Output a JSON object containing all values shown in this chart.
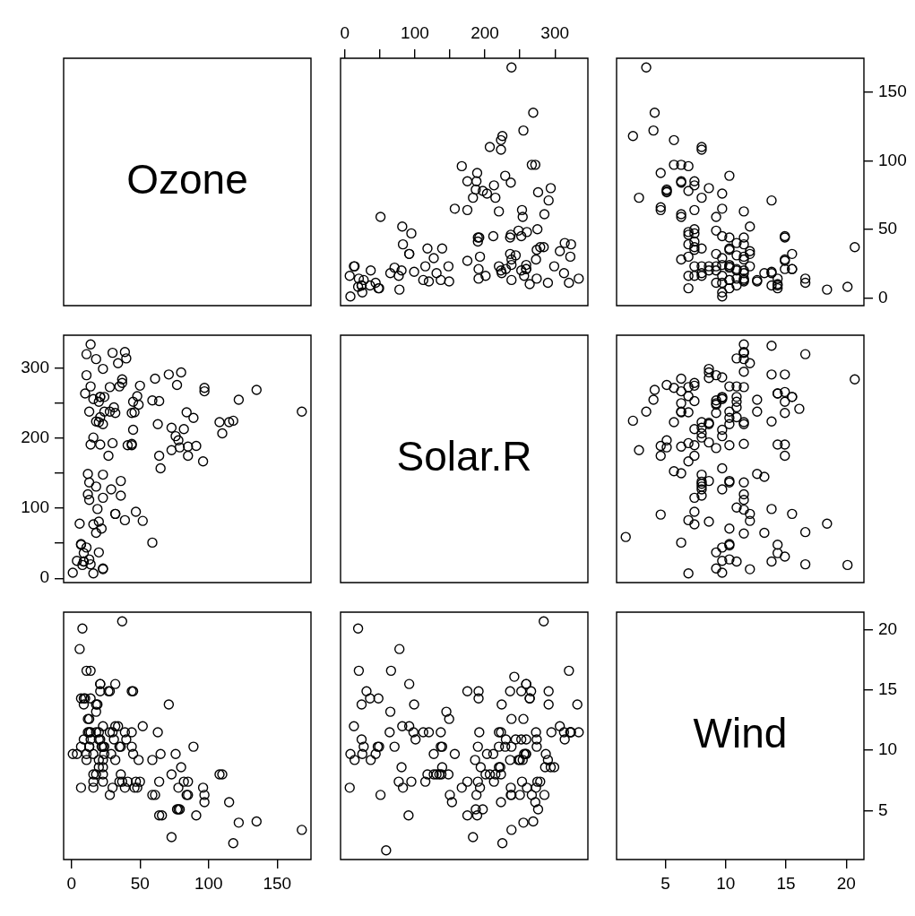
{
  "chart_data": [
    {
      "type": "other",
      "title": "Ozone"
    },
    {
      "type": "scatter",
      "marker": "circle",
      "color": "#000000",
      "tick_labels": "x",
      "xlim": [
        -6.08,
        347.08
      ],
      "xticks": [
        0,
        {
          "value": 50,
          "label": null
        },
        100,
        {
          "value": 150,
          "label": null
        },
        200,
        {
          "value": 250,
          "label": null
        },
        300
      ],
      "ylim": [
        -5.68,
        174.68
      ],
      "yticks": [
        0,
        50,
        100,
        150
      ],
      "x": [
        190,
        118,
        149,
        313,
        299,
        99,
        19,
        256,
        290,
        274,
        65,
        334,
        307,
        78,
        322,
        44,
        8,
        320,
        25,
        92,
        13,
        252,
        223,
        279,
        127,
        291,
        323,
        148,
        191,
        284,
        37,
        120,
        137,
        269,
        248,
        236,
        175,
        314,
        276,
        267,
        272,
        175,
        264,
        175,
        48,
        260,
        274,
        285,
        187,
        220,
        7,
        294,
        223,
        81,
        82,
        213,
        275,
        253,
        254,
        83,
        24,
        77,
        255,
        229,
        207,
        192,
        273,
        157,
        71,
        51,
        115,
        244,
        190,
        259,
        36,
        212,
        238,
        215,
        203,
        225,
        237,
        188,
        167,
        197,
        183,
        189,
        95,
        92,
        252,
        220,
        230,
        259,
        236,
        259,
        238,
        24,
        112,
        237,
        224,
        27,
        238,
        201,
        238,
        14,
        139,
        49,
        20,
        193,
        191,
        131,
        223
      ],
      "values": [
        41,
        36,
        12,
        18,
        23,
        19,
        8,
        16,
        11,
        14,
        18,
        14,
        34,
        6,
        30,
        11,
        1,
        11,
        4,
        32,
        23,
        45,
        115,
        37,
        29,
        71,
        39,
        23,
        21,
        37,
        20,
        12,
        13,
        135,
        49,
        32,
        64,
        40,
        77,
        97,
        97,
        85,
        10,
        27,
        7,
        48,
        35,
        61,
        79,
        63,
        16,
        80,
        108,
        20,
        52,
        82,
        50,
        64,
        59,
        39,
        9,
        16,
        122,
        89,
        110,
        44,
        28,
        65,
        22,
        59,
        23,
        31,
        44,
        21,
        9,
        45,
        168,
        73,
        76,
        118,
        84,
        85,
        96,
        78,
        73,
        91,
        47,
        32,
        20,
        23,
        21,
        24,
        44,
        21,
        28,
        9,
        13,
        46,
        18,
        13,
        24,
        16,
        13,
        23,
        36,
        7,
        14,
        30,
        14,
        18,
        20
      ]
    },
    {
      "type": "scatter",
      "marker": "circle",
      "color": "#000000",
      "tick_labels": "y",
      "xlim": [
        0.94,
        21.46
      ],
      "xticks": [
        5,
        10,
        15,
        20
      ],
      "ylim": [
        -5.68,
        174.68
      ],
      "yticks": [
        0,
        50,
        100,
        150
      ],
      "x": [
        7.4,
        8.0,
        12.6,
        11.5,
        14.9,
        8.6,
        13.8,
        20.1,
        6.9,
        9.7,
        9.2,
        10.9,
        13.2,
        11.5,
        12.0,
        18.4,
        11.5,
        9.7,
        9.7,
        16.6,
        9.7,
        12.0,
        12.0,
        14.9,
        5.7,
        7.4,
        9.7,
        13.8,
        11.5,
        8.0,
        14.9,
        20.7,
        9.2,
        11.5,
        10.3,
        4.1,
        9.2,
        9.2,
        4.6,
        10.9,
        5.1,
        6.3,
        5.7,
        7.4,
        14.3,
        14.9,
        14.3,
        6.9,
        10.3,
        6.3,
        5.1,
        11.5,
        6.9,
        8.6,
        8.0,
        8.6,
        12.0,
        7.4,
        7.4,
        7.4,
        9.2,
        6.9,
        13.8,
        7.4,
        6.9,
        7.4,
        4.6,
        4.0,
        10.3,
        8.0,
        11.5,
        11.5,
        9.7,
        10.3,
        6.3,
        7.4,
        10.9,
        10.3,
        15.5,
        14.3,
        9.7,
        3.4,
        8.0,
        9.7,
        2.3,
        6.3,
        6.3,
        6.9,
        5.1,
        2.8,
        4.6,
        7.4,
        15.5,
        10.9,
        10.3,
        10.9,
        9.7,
        14.9,
        15.5,
        6.3,
        10.9,
        11.5,
        6.9,
        13.8,
        10.3,
        10.3,
        8.0,
        12.6,
        9.2,
        10.3,
        10.3,
        16.6,
        6.9,
        14.3,
        8.0,
        11.5
      ],
      "values": [
        41,
        36,
        12,
        18,
        28,
        23,
        19,
        8,
        7,
        16,
        11,
        14,
        18,
        14,
        34,
        6,
        30,
        11,
        1,
        11,
        4,
        32,
        23,
        45,
        115,
        37,
        29,
        71,
        39,
        23,
        21,
        37,
        20,
        12,
        13,
        135,
        49,
        32,
        64,
        40,
        77,
        97,
        97,
        85,
        10,
        27,
        7,
        48,
        35,
        61,
        79,
        63,
        16,
        80,
        108,
        20,
        52,
        82,
        50,
        64,
        59,
        39,
        9,
        16,
        78,
        35,
        66,
        122,
        89,
        110,
        44,
        28,
        65,
        22,
        59,
        23,
        31,
        44,
        21,
        9,
        45,
        168,
        73,
        76,
        118,
        84,
        85,
        96,
        78,
        73,
        91,
        47,
        32,
        20,
        23,
        21,
        24,
        44,
        21,
        28,
        9,
        13,
        46,
        18,
        13,
        24,
        16,
        13,
        23,
        36,
        7,
        14,
        30,
        14,
        18,
        20
      ]
    },
    {
      "type": "scatter",
      "marker": "circle",
      "color": "#000000",
      "tick_labels": "y",
      "xlim": [
        -5.68,
        174.68
      ],
      "xticks": [
        0,
        50,
        100,
        150
      ],
      "ylim": [
        -6.08,
        347.08
      ],
      "yticks": [
        0,
        {
          "value": 50,
          "label": null
        },
        100,
        {
          "value": 150,
          "label": null
        },
        200,
        {
          "value": 250,
          "label": null
        },
        300
      ],
      "x": [
        41,
        36,
        12,
        18,
        23,
        19,
        8,
        16,
        11,
        14,
        18,
        14,
        34,
        6,
        30,
        11,
        1,
        11,
        4,
        32,
        23,
        45,
        115,
        37,
        29,
        71,
        39,
        23,
        21,
        37,
        20,
        12,
        13,
        135,
        49,
        32,
        64,
        40,
        77,
        97,
        97,
        85,
        10,
        27,
        7,
        48,
        35,
        61,
        79,
        63,
        16,
        80,
        108,
        20,
        52,
        82,
        50,
        64,
        59,
        39,
        9,
        16,
        122,
        89,
        110,
        44,
        28,
        65,
        22,
        59,
        23,
        31,
        44,
        21,
        9,
        45,
        168,
        73,
        76,
        118,
        84,
        85,
        96,
        78,
        73,
        91,
        47,
        32,
        20,
        23,
        21,
        24,
        44,
        21,
        28,
        9,
        13,
        46,
        18,
        13,
        24,
        16,
        13,
        23,
        36,
        7,
        14,
        30,
        14,
        18,
        20
      ],
      "values": [
        190,
        118,
        149,
        313,
        299,
        99,
        19,
        256,
        290,
        274,
        65,
        334,
        307,
        78,
        322,
        44,
        8,
        320,
        25,
        92,
        13,
        252,
        223,
        279,
        127,
        291,
        323,
        148,
        191,
        284,
        37,
        120,
        137,
        269,
        248,
        236,
        175,
        314,
        276,
        267,
        272,
        175,
        264,
        175,
        48,
        260,
        274,
        285,
        187,
        220,
        7,
        294,
        223,
        81,
        82,
        213,
        275,
        253,
        254,
        83,
        24,
        77,
        255,
        229,
        207,
        192,
        273,
        157,
        71,
        51,
        115,
        244,
        190,
        259,
        36,
        212,
        238,
        215,
        203,
        225,
        237,
        188,
        167,
        197,
        183,
        189,
        95,
        92,
        252,
        220,
        230,
        259,
        236,
        259,
        238,
        24,
        112,
        237,
        224,
        27,
        238,
        201,
        238,
        14,
        139,
        49,
        20,
        193,
        191,
        131,
        223
      ]
    },
    {
      "type": "other",
      "title": "Solar.R"
    },
    {
      "type": "scatter",
      "marker": "circle",
      "color": "#000000",
      "tick_labels": false,
      "xlim": [
        0.94,
        21.46
      ],
      "xticks": [
        5,
        10,
        15,
        20
      ],
      "ylim": [
        -6.08,
        347.08
      ],
      "yticks": [
        0,
        100,
        200,
        300
      ],
      "x": [
        7.4,
        8.0,
        12.6,
        11.5,
        8.6,
        13.8,
        20.1,
        8.6,
        9.7,
        9.2,
        10.9,
        13.2,
        11.5,
        12.0,
        18.4,
        11.5,
        9.7,
        9.7,
        16.6,
        9.7,
        12.0,
        16.6,
        14.9,
        12.0,
        14.9,
        5.7,
        7.4,
        8.6,
        9.7,
        16.1,
        9.2,
        8.6,
        14.3,
        9.7,
        6.9,
        13.8,
        11.5,
        10.9,
        9.2,
        8.0,
        13.8,
        11.5,
        14.9,
        20.7,
        9.2,
        11.5,
        10.3,
        6.3,
        1.7,
        4.6,
        6.3,
        8.0,
        8.0,
        10.3,
        11.5,
        14.9,
        8.0,
        4.1,
        9.2,
        9.2,
        10.9,
        4.6,
        10.9,
        5.1,
        6.3,
        5.7,
        7.4,
        8.6,
        14.3,
        14.9,
        14.9,
        14.3,
        6.9,
        10.3,
        6.3,
        5.1,
        11.5,
        6.9,
        9.7,
        11.5,
        8.6,
        8.0,
        8.6,
        12.0,
        7.4,
        7.4,
        7.4,
        9.2,
        6.9,
        13.8,
        7.4,
        4.0,
        10.3,
        8.0,
        8.6,
        11.5,
        11.5,
        11.5,
        9.7,
        11.5,
        10.3,
        6.3,
        7.4,
        10.9,
        10.3,
        15.5,
        14.3,
        12.6,
        9.7,
        3.4,
        8.0,
        5.7,
        9.7,
        2.3,
        6.3,
        6.3,
        6.9,
        5.1,
        2.8,
        4.6,
        7.4,
        15.5,
        10.9,
        10.3,
        10.9,
        9.7,
        14.9,
        15.5,
        6.3,
        10.9,
        11.5,
        6.9,
        13.8,
        10.3,
        10.3,
        8.0,
        12.6,
        9.2,
        10.3,
        10.3,
        16.6,
        6.9,
        13.2,
        14.3,
        8.0,
        11.5
      ],
      "values": [
        190,
        118,
        149,
        313,
        299,
        99,
        19,
        194,
        256,
        290,
        274,
        65,
        334,
        307,
        78,
        322,
        44,
        8,
        320,
        25,
        92,
        66,
        266,
        13,
        252,
        223,
        279,
        286,
        287,
        242,
        186,
        220,
        264,
        127,
        273,
        291,
        323,
        259,
        250,
        148,
        332,
        322,
        191,
        284,
        37,
        120,
        137,
        150,
        59,
        91,
        250,
        135,
        127,
        47,
        98,
        31,
        138,
        269,
        248,
        236,
        101,
        175,
        314,
        276,
        267,
        272,
        175,
        139,
        264,
        175,
        291,
        48,
        260,
        274,
        285,
        187,
        220,
        7,
        258,
        295,
        294,
        223,
        81,
        82,
        213,
        275,
        253,
        254,
        83,
        24,
        77,
        255,
        229,
        207,
        222,
        137,
        192,
        273,
        157,
        64,
        71,
        51,
        115,
        244,
        190,
        259,
        36,
        255,
        212,
        238,
        215,
        153,
        203,
        225,
        237,
        188,
        167,
        197,
        183,
        189,
        95,
        92,
        252,
        220,
        230,
        259,
        236,
        259,
        238,
        24,
        112,
        237,
        224,
        27,
        238,
        201,
        238,
        14,
        139,
        49,
        20,
        193,
        145,
        191,
        131,
        223
      ]
    },
    {
      "type": "scatter",
      "marker": "circle",
      "color": "#000000",
      "tick_labels": "x",
      "xlim": [
        -5.68,
        174.68
      ],
      "xticks": [
        0,
        50,
        100,
        150
      ],
      "ylim": [
        0.94,
        21.46
      ],
      "yticks": [
        5,
        10,
        15,
        20
      ],
      "x": [
        41,
        36,
        12,
        18,
        28,
        23,
        19,
        8,
        7,
        16,
        11,
        14,
        18,
        14,
        34,
        6,
        30,
        11,
        1,
        11,
        4,
        32,
        23,
        45,
        115,
        37,
        29,
        71,
        39,
        23,
        21,
        37,
        20,
        12,
        13,
        135,
        49,
        32,
        64,
        40,
        77,
        97,
        97,
        85,
        10,
        27,
        7,
        48,
        35,
        61,
        79,
        63,
        16,
        80,
        108,
        20,
        52,
        82,
        50,
        64,
        59,
        39,
        9,
        16,
        78,
        35,
        66,
        122,
        89,
        110,
        44,
        28,
        65,
        22,
        59,
        23,
        31,
        44,
        21,
        9,
        45,
        168,
        73,
        76,
        118,
        84,
        85,
        96,
        78,
        73,
        91,
        47,
        32,
        20,
        23,
        21,
        24,
        44,
        21,
        28,
        9,
        13,
        46,
        18,
        13,
        24,
        16,
        13,
        23,
        36,
        7,
        14,
        30,
        14,
        18,
        20
      ],
      "values": [
        7.4,
        8.0,
        12.6,
        11.5,
        14.9,
        8.6,
        13.8,
        20.1,
        6.9,
        9.7,
        9.2,
        10.9,
        13.2,
        11.5,
        12.0,
        18.4,
        11.5,
        9.7,
        9.7,
        16.6,
        9.7,
        12.0,
        12.0,
        14.9,
        5.7,
        7.4,
        9.7,
        13.8,
        11.5,
        8.0,
        14.9,
        20.7,
        9.2,
        11.5,
        10.3,
        4.1,
        9.2,
        9.2,
        4.6,
        10.9,
        5.1,
        6.3,
        5.7,
        7.4,
        14.3,
        14.9,
        14.3,
        6.9,
        10.3,
        6.3,
        5.1,
        11.5,
        6.9,
        8.6,
        8.0,
        8.6,
        12.0,
        7.4,
        7.4,
        7.4,
        9.2,
        6.9,
        13.8,
        7.4,
        6.9,
        7.4,
        4.6,
        4.0,
        10.3,
        8.0,
        11.5,
        11.5,
        9.7,
        10.3,
        6.3,
        7.4,
        10.9,
        10.3,
        15.5,
        14.3,
        9.7,
        3.4,
        8.0,
        9.7,
        2.3,
        6.3,
        6.3,
        6.9,
        5.1,
        2.8,
        4.6,
        7.4,
        15.5,
        10.9,
        10.3,
        10.9,
        9.7,
        14.9,
        15.5,
        6.3,
        10.9,
        11.5,
        6.9,
        13.8,
        10.3,
        10.3,
        8.0,
        12.6,
        9.2,
        10.3,
        10.3,
        16.6,
        6.9,
        14.3,
        8.0,
        11.5
      ]
    },
    {
      "type": "scatter",
      "marker": "circle",
      "color": "#000000",
      "tick_labels": false,
      "xlim": [
        -6.08,
        347.08
      ],
      "xticks": [
        0,
        100,
        200,
        300
      ],
      "ylim": [
        0.94,
        21.46
      ],
      "yticks": [
        5,
        10,
        15,
        20
      ],
      "x": [
        190,
        118,
        149,
        313,
        299,
        99,
        19,
        194,
        256,
        290,
        274,
        65,
        334,
        307,
        78,
        322,
        44,
        8,
        320,
        25,
        92,
        66,
        266,
        13,
        252,
        223,
        279,
        286,
        287,
        242,
        186,
        220,
        264,
        127,
        273,
        291,
        323,
        259,
        250,
        148,
        332,
        322,
        191,
        284,
        37,
        120,
        137,
        150,
        59,
        91,
        250,
        135,
        127,
        47,
        98,
        31,
        138,
        269,
        248,
        236,
        101,
        175,
        314,
        276,
        267,
        272,
        175,
        139,
        264,
        175,
        291,
        48,
        260,
        274,
        285,
        187,
        220,
        7,
        258,
        295,
        294,
        223,
        81,
        82,
        213,
        275,
        253,
        254,
        83,
        24,
        77,
        255,
        229,
        207,
        222,
        137,
        192,
        273,
        157,
        64,
        71,
        51,
        115,
        244,
        190,
        259,
        36,
        255,
        212,
        238,
        215,
        153,
        203,
        225,
        237,
        188,
        167,
        197,
        183,
        189,
        95,
        92,
        252,
        220,
        230,
        259,
        236,
        259,
        238,
        24,
        112,
        237,
        224,
        27,
        238,
        201,
        238,
        14,
        139,
        49,
        20,
        193,
        145,
        191,
        131,
        223
      ],
      "values": [
        7.4,
        8.0,
        12.6,
        11.5,
        8.6,
        13.8,
        20.1,
        8.6,
        9.7,
        9.2,
        10.9,
        13.2,
        11.5,
        12.0,
        18.4,
        11.5,
        9.7,
        9.7,
        16.6,
        9.7,
        12.0,
        16.6,
        14.9,
        12.0,
        14.9,
        5.7,
        7.4,
        8.6,
        9.7,
        16.1,
        9.2,
        8.6,
        14.3,
        9.7,
        6.9,
        13.8,
        11.5,
        10.9,
        9.2,
        8.0,
        13.8,
        11.5,
        14.9,
        20.7,
        9.2,
        11.5,
        10.3,
        6.3,
        1.7,
        4.6,
        6.3,
        8.0,
        8.0,
        10.3,
        11.5,
        14.9,
        8.0,
        4.1,
        9.2,
        9.2,
        10.9,
        4.6,
        10.9,
        5.1,
        6.3,
        5.7,
        7.4,
        8.6,
        14.3,
        14.9,
        14.9,
        14.3,
        6.9,
        10.3,
        6.3,
        5.1,
        11.5,
        6.9,
        9.7,
        11.5,
        8.6,
        8.0,
        8.6,
        12.0,
        7.4,
        7.4,
        7.4,
        9.2,
        6.9,
        13.8,
        7.4,
        4.0,
        10.3,
        8.0,
        8.6,
        11.5,
        11.5,
        11.5,
        9.7,
        11.5,
        10.3,
        6.3,
        7.4,
        10.9,
        10.3,
        15.5,
        14.3,
        12.6,
        9.7,
        3.4,
        8.0,
        5.7,
        9.7,
        2.3,
        6.3,
        6.3,
        6.9,
        5.1,
        2.8,
        4.6,
        7.4,
        15.5,
        10.9,
        10.3,
        10.9,
        9.7,
        14.9,
        15.5,
        6.3,
        10.9,
        11.5,
        6.9,
        13.8,
        10.3,
        10.3,
        8.0,
        12.6,
        9.2,
        10.3,
        10.3,
        16.6,
        6.9,
        13.2,
        14.3,
        8.0,
        11.5
      ]
    },
    {
      "type": "scatter",
      "title": "Wind",
      "xlim": [
        0.94,
        21.46
      ],
      "xticks": [
        5,
        10,
        15,
        20
      ],
      "ylim": [
        0.94,
        21.46
      ],
      "yticks": [
        5,
        10,
        15,
        20
      ]
    }
  ]
}
